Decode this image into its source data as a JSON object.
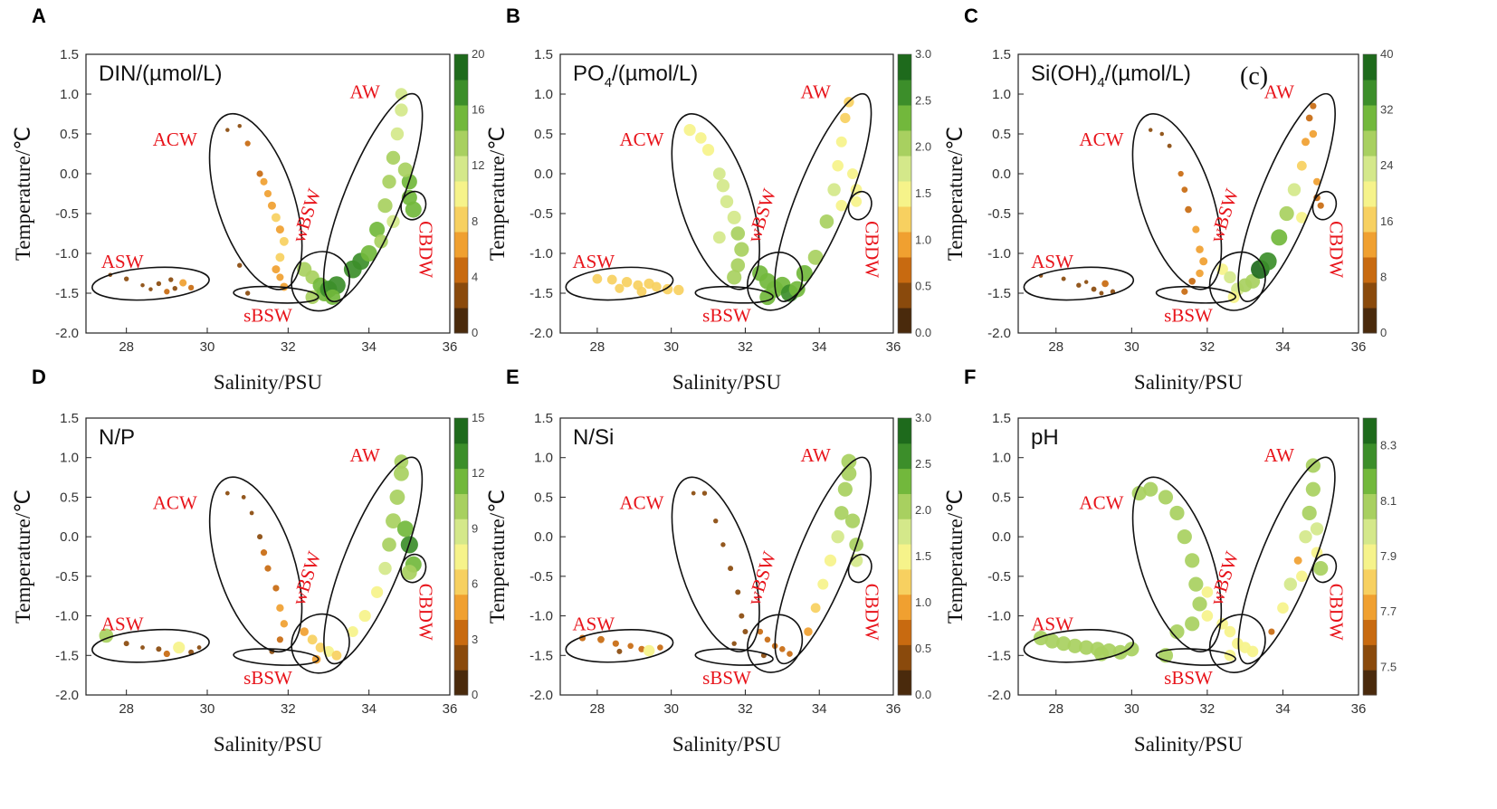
{
  "figure": {
    "background": "#ffffff"
  },
  "axes": {
    "xlabel": "Salinity/PSU",
    "ylabel": "Temperature/℃",
    "xlim": [
      27,
      36
    ],
    "ylim": [
      -2.0,
      1.5
    ],
    "xticks": [
      "28",
      "30",
      "32",
      "34",
      "36"
    ],
    "yticks": [
      "1.5",
      "1.0",
      "0.5",
      "0.0",
      "-0.5",
      "-1.0",
      "-1.5",
      "-2.0"
    ],
    "water_masses": [
      "ASW",
      "ACW",
      "sBSW",
      "wBSW",
      "AW",
      "CBDW"
    ]
  },
  "colorscale": [
    "#4a2a0c",
    "#8a4a0c",
    "#c86a10",
    "#f0a030",
    "#f7d060",
    "#f6f38a",
    "#d4e88a",
    "#a8d060",
    "#72b83c",
    "#3c8e2a",
    "#1e6a1c"
  ],
  "chart_data": [
    {
      "type": "scatter",
      "letter": "A",
      "title": "DIN/(µmol/L)",
      "title_sub": "",
      "colorbar": {
        "min": 0,
        "max": 20,
        "ticks": [
          "20",
          "16",
          "12",
          "8",
          "4",
          "0"
        ]
      },
      "points": [
        [
          27.6,
          -1.27,
          1
        ],
        [
          28.0,
          -1.32,
          2
        ],
        [
          28.4,
          -1.4,
          1
        ],
        [
          28.8,
          -1.38,
          2
        ],
        [
          29.0,
          -1.48,
          3
        ],
        [
          29.2,
          -1.44,
          2
        ],
        [
          29.4,
          -1.37,
          5
        ],
        [
          29.6,
          -1.43,
          3
        ],
        [
          29.1,
          -1.33,
          2
        ],
        [
          28.6,
          -1.45,
          1
        ],
        [
          30.5,
          0.55,
          1
        ],
        [
          30.8,
          0.6,
          1
        ],
        [
          31.0,
          0.38,
          3
        ],
        [
          31.3,
          0.0,
          4
        ],
        [
          31.4,
          -0.1,
          5
        ],
        [
          31.5,
          -0.25,
          5
        ],
        [
          31.6,
          -0.4,
          6
        ],
        [
          31.7,
          -0.55,
          7
        ],
        [
          31.8,
          -0.7,
          6
        ],
        [
          31.9,
          -0.85,
          7
        ],
        [
          31.8,
          -1.05,
          7
        ],
        [
          31.7,
          -1.2,
          6
        ],
        [
          31.8,
          -1.3,
          5
        ],
        [
          31.9,
          -1.42,
          6
        ],
        [
          30.8,
          -1.15,
          2
        ],
        [
          31.0,
          -1.5,
          2
        ],
        [
          32.4,
          -1.2,
          14
        ],
        [
          32.6,
          -1.3,
          13
        ],
        [
          32.8,
          -1.4,
          15
        ],
        [
          32.6,
          -1.55,
          13
        ],
        [
          32.9,
          -1.5,
          16
        ],
        [
          33.0,
          -1.45,
          17
        ],
        [
          33.2,
          -1.4,
          18
        ],
        [
          33.1,
          -1.55,
          15
        ],
        [
          33.6,
          -1.2,
          18
        ],
        [
          33.8,
          -1.1,
          17
        ],
        [
          34.0,
          -1.0,
          16
        ],
        [
          34.2,
          -0.7,
          15
        ],
        [
          34.4,
          -0.4,
          14
        ],
        [
          34.5,
          -0.1,
          13
        ],
        [
          34.6,
          0.2,
          13
        ],
        [
          34.7,
          0.5,
          12
        ],
        [
          34.8,
          0.8,
          12
        ],
        [
          34.8,
          1.0,
          11
        ],
        [
          34.6,
          -0.6,
          12
        ],
        [
          34.3,
          -0.85,
          13
        ],
        [
          35.0,
          -0.3,
          15
        ],
        [
          35.1,
          -0.45,
          16
        ],
        [
          35.0,
          -0.1,
          15
        ],
        [
          34.9,
          0.05,
          14
        ]
      ]
    },
    {
      "type": "scatter",
      "letter": "B",
      "title": "PO",
      "title_sub": "4",
      "title_tail": "/(µmol/L)",
      "colorbar": {
        "min": 0.0,
        "max": 3.0,
        "ticks": [
          "3.0",
          "2.5",
          "2.0",
          "1.5",
          "1.0",
          "0.5",
          "0.0"
        ]
      },
      "points": [
        [
          28.0,
          -1.32,
          1.2
        ],
        [
          28.4,
          -1.33,
          1.2
        ],
        [
          28.8,
          -1.36,
          1.3
        ],
        [
          29.1,
          -1.4,
          1.2
        ],
        [
          29.4,
          -1.38,
          1.3
        ],
        [
          29.6,
          -1.42,
          1.2
        ],
        [
          29.9,
          -1.45,
          1.3
        ],
        [
          28.6,
          -1.44,
          1.1
        ],
        [
          29.2,
          -1.48,
          1.2
        ],
        [
          30.2,
          -1.46,
          1.3
        ],
        [
          30.5,
          0.55,
          1.6
        ],
        [
          30.8,
          0.45,
          1.5
        ],
        [
          31.0,
          0.3,
          1.6
        ],
        [
          31.3,
          0.0,
          1.7
        ],
        [
          31.4,
          -0.15,
          1.8
        ],
        [
          31.5,
          -0.35,
          1.8
        ],
        [
          31.7,
          -0.55,
          1.9
        ],
        [
          31.8,
          -0.75,
          2.0
        ],
        [
          31.9,
          -0.95,
          2.1
        ],
        [
          31.8,
          -1.15,
          2.0
        ],
        [
          31.7,
          -1.3,
          2.1
        ],
        [
          31.3,
          -0.8,
          1.7
        ],
        [
          32.4,
          -1.25,
          2.3
        ],
        [
          32.6,
          -1.35,
          2.4
        ],
        [
          32.8,
          -1.45,
          2.5
        ],
        [
          33.0,
          -1.4,
          2.5
        ],
        [
          33.2,
          -1.5,
          2.6
        ],
        [
          32.6,
          -1.55,
          2.3
        ],
        [
          33.4,
          -1.45,
          2.4
        ],
        [
          33.6,
          -1.25,
          2.4
        ],
        [
          33.9,
          -1.05,
          2.2
        ],
        [
          34.2,
          -0.6,
          2.0
        ],
        [
          34.4,
          -0.2,
          1.8
        ],
        [
          34.5,
          0.1,
          1.5
        ],
        [
          34.6,
          0.4,
          1.4
        ],
        [
          34.7,
          0.7,
          1.3
        ],
        [
          34.8,
          0.9,
          1.3
        ],
        [
          34.6,
          -0.4,
          1.5
        ],
        [
          35.0,
          -0.35,
          1.4
        ],
        [
          35.0,
          -0.2,
          1.5
        ],
        [
          34.9,
          0.0,
          1.4
        ]
      ]
    },
    {
      "type": "scatter",
      "letter": "C",
      "title": "Si(OH)",
      "title_sub": "4",
      "title_tail": "/(µmol/L)",
      "extra_label": "(c)",
      "colorbar": {
        "min": 0,
        "max": 40,
        "ticks": [
          "40",
          "32",
          "24",
          "16",
          "8",
          "0"
        ]
      },
      "points": [
        [
          27.6,
          -1.28,
          2
        ],
        [
          28.2,
          -1.32,
          3
        ],
        [
          28.6,
          -1.4,
          4
        ],
        [
          29.0,
          -1.45,
          5
        ],
        [
          29.3,
          -1.38,
          9
        ],
        [
          29.5,
          -1.48,
          4
        ],
        [
          29.2,
          -1.5,
          3
        ],
        [
          28.8,
          -1.36,
          2
        ],
        [
          30.5,
          0.55,
          2
        ],
        [
          30.8,
          0.5,
          2
        ],
        [
          31.0,
          0.35,
          3
        ],
        [
          31.3,
          0.0,
          6
        ],
        [
          31.4,
          -0.2,
          7
        ],
        [
          31.5,
          -0.45,
          9
        ],
        [
          31.7,
          -0.7,
          10
        ],
        [
          31.8,
          -0.95,
          11
        ],
        [
          31.9,
          -1.1,
          12
        ],
        [
          31.8,
          -1.25,
          11
        ],
        [
          31.6,
          -1.35,
          9
        ],
        [
          31.4,
          -1.48,
          8
        ],
        [
          32.4,
          -1.2,
          20
        ],
        [
          32.6,
          -1.3,
          22
        ],
        [
          32.8,
          -1.45,
          24
        ],
        [
          33.0,
          -1.4,
          26
        ],
        [
          33.2,
          -1.35,
          28
        ],
        [
          33.4,
          -1.2,
          38
        ],
        [
          32.7,
          -1.55,
          21
        ],
        [
          33.6,
          -1.1,
          36
        ],
        [
          33.9,
          -0.8,
          32
        ],
        [
          34.1,
          -0.5,
          28
        ],
        [
          34.3,
          -0.2,
          24
        ],
        [
          34.5,
          0.1,
          16
        ],
        [
          34.6,
          0.4,
          12
        ],
        [
          34.7,
          0.7,
          9
        ],
        [
          34.8,
          0.85,
          8
        ],
        [
          34.5,
          -0.55,
          20
        ],
        [
          34.9,
          -0.3,
          9
        ],
        [
          35.0,
          -0.4,
          8
        ],
        [
          34.9,
          -0.1,
          10
        ],
        [
          34.8,
          0.5,
          11
        ]
      ]
    },
    {
      "type": "scatter",
      "letter": "D",
      "title": "N/P",
      "title_sub": "",
      "colorbar": {
        "min": 0,
        "max": 15,
        "ticks": [
          "15",
          "12",
          "9",
          "6",
          "3",
          "0"
        ]
      },
      "points": [
        [
          27.5,
          -1.25,
          10
        ],
        [
          28.0,
          -1.35,
          2
        ],
        [
          28.4,
          -1.4,
          1
        ],
        [
          28.8,
          -1.42,
          2
        ],
        [
          29.0,
          -1.48,
          3
        ],
        [
          29.3,
          -1.4,
          8
        ],
        [
          29.6,
          -1.46,
          2
        ],
        [
          29.8,
          -1.4,
          1
        ],
        [
          30.5,
          0.55,
          1
        ],
        [
          30.9,
          0.5,
          1
        ],
        [
          31.1,
          0.3,
          1
        ],
        [
          31.3,
          0.0,
          2
        ],
        [
          31.4,
          -0.2,
          3
        ],
        [
          31.5,
          -0.4,
          3
        ],
        [
          31.7,
          -0.65,
          3
        ],
        [
          31.8,
          -0.9,
          4
        ],
        [
          31.9,
          -1.1,
          4
        ],
        [
          31.8,
          -1.3,
          3
        ],
        [
          31.6,
          -1.45,
          2
        ],
        [
          32.4,
          -1.2,
          5
        ],
        [
          32.6,
          -1.3,
          6
        ],
        [
          32.8,
          -1.4,
          6
        ],
        [
          33.0,
          -1.45,
          7
        ],
        [
          33.2,
          -1.5,
          6
        ],
        [
          32.7,
          -1.55,
          5
        ],
        [
          33.6,
          -1.2,
          7
        ],
        [
          33.9,
          -1.0,
          8
        ],
        [
          34.2,
          -0.7,
          8
        ],
        [
          34.4,
          -0.4,
          9
        ],
        [
          34.5,
          -0.1,
          10
        ],
        [
          34.6,
          0.2,
          11
        ],
        [
          34.7,
          0.5,
          11
        ],
        [
          34.8,
          0.8,
          11
        ],
        [
          34.8,
          0.95,
          10
        ],
        [
          35.0,
          -0.1,
          13
        ],
        [
          35.1,
          -0.35,
          12
        ],
        [
          35.0,
          -0.45,
          11
        ],
        [
          34.9,
          0.1,
          12
        ]
      ]
    },
    {
      "type": "scatter",
      "letter": "E",
      "title": "N/Si",
      "title_sub": "",
      "colorbar": {
        "min": 0.0,
        "max": 3.0,
        "ticks": [
          "3.0",
          "2.5",
          "2.0",
          "1.5",
          "1.0",
          "0.5",
          "0.0"
        ]
      },
      "points": [
        [
          27.6,
          -1.28,
          0.6
        ],
        [
          28.1,
          -1.3,
          0.7
        ],
        [
          28.5,
          -1.35,
          0.6
        ],
        [
          28.9,
          -1.38,
          0.5
        ],
        [
          29.2,
          -1.42,
          0.6
        ],
        [
          29.4,
          -1.44,
          1.5
        ],
        [
          29.7,
          -1.4,
          0.5
        ],
        [
          28.6,
          -1.45,
          0.4
        ],
        [
          30.6,
          0.55,
          0.2
        ],
        [
          30.9,
          0.55,
          0.3
        ],
        [
          31.2,
          0.2,
          0.3
        ],
        [
          31.4,
          -0.1,
          0.3
        ],
        [
          31.6,
          -0.4,
          0.4
        ],
        [
          31.8,
          -0.7,
          0.4
        ],
        [
          31.9,
          -1.0,
          0.4
        ],
        [
          32.0,
          -1.2,
          0.4
        ],
        [
          31.7,
          -1.35,
          0.3
        ],
        [
          32.4,
          -1.2,
          0.5
        ],
        [
          32.6,
          -1.3,
          0.5
        ],
        [
          32.8,
          -1.38,
          0.5
        ],
        [
          33.0,
          -1.42,
          0.5
        ],
        [
          33.2,
          -1.48,
          0.5
        ],
        [
          32.5,
          -1.5,
          0.4
        ],
        [
          33.7,
          -1.2,
          1.0
        ],
        [
          33.9,
          -0.9,
          1.2
        ],
        [
          34.1,
          -0.6,
          1.4
        ],
        [
          34.3,
          -0.3,
          1.6
        ],
        [
          34.5,
          0.0,
          1.8
        ],
        [
          34.6,
          0.3,
          2.0
        ],
        [
          34.7,
          0.6,
          2.1
        ],
        [
          34.8,
          0.8,
          2.2
        ],
        [
          34.8,
          0.95,
          2.2
        ],
        [
          35.0,
          -0.3,
          1.8
        ],
        [
          35.0,
          -0.1,
          2.0
        ],
        [
          34.9,
          0.2,
          2.1
        ]
      ]
    },
    {
      "type": "scatter",
      "letter": "F",
      "title": "pH",
      "title_sub": "",
      "colorbar": {
        "min": 7.4,
        "max": 8.4,
        "ticks": [
          "8.3",
          "8.1",
          "7.9",
          "7.7",
          "7.5"
        ]
      },
      "points": [
        [
          27.6,
          -1.28,
          8.1
        ],
        [
          27.9,
          -1.32,
          8.1
        ],
        [
          28.2,
          -1.35,
          8.1
        ],
        [
          28.5,
          -1.38,
          8.1
        ],
        [
          28.8,
          -1.4,
          8.1
        ],
        [
          29.1,
          -1.42,
          8.1
        ],
        [
          29.4,
          -1.44,
          8.1
        ],
        [
          29.7,
          -1.46,
          8.1
        ],
        [
          30.0,
          -1.42,
          8.1
        ],
        [
          29.2,
          -1.48,
          8.1
        ],
        [
          30.2,
          0.55,
          8.1
        ],
        [
          30.5,
          0.6,
          8.1
        ],
        [
          30.9,
          0.5,
          8.1
        ],
        [
          31.2,
          0.3,
          8.1
        ],
        [
          31.4,
          0.0,
          8.1
        ],
        [
          31.6,
          -0.3,
          8.1
        ],
        [
          31.7,
          -0.6,
          8.1
        ],
        [
          31.8,
          -0.85,
          8.1
        ],
        [
          31.6,
          -1.1,
          8.1
        ],
        [
          31.2,
          -1.2,
          8.1
        ],
        [
          30.9,
          -1.5,
          8.1
        ],
        [
          32.0,
          -0.7,
          7.9
        ],
        [
          32.0,
          -1.0,
          7.9
        ],
        [
          32.4,
          -1.1,
          7.9
        ],
        [
          32.6,
          -1.2,
          7.9
        ],
        [
          32.8,
          -1.35,
          7.9
        ],
        [
          33.0,
          -1.4,
          7.9
        ],
        [
          33.2,
          -1.45,
          7.9
        ],
        [
          32.6,
          -1.5,
          7.9
        ],
        [
          33.7,
          -1.2,
          7.6
        ],
        [
          34.0,
          -0.9,
          7.9
        ],
        [
          34.2,
          -0.6,
          8.0
        ],
        [
          34.4,
          -0.3,
          7.7
        ],
        [
          34.6,
          0.0,
          8.0
        ],
        [
          34.7,
          0.3,
          8.1
        ],
        [
          34.8,
          0.6,
          8.1
        ],
        [
          34.8,
          0.9,
          8.1
        ],
        [
          34.5,
          -0.5,
          7.9
        ],
        [
          35.0,
          -0.4,
          8.1
        ],
        [
          34.9,
          -0.2,
          7.9
        ],
        [
          34.9,
          0.1,
          8.0
        ]
      ]
    }
  ]
}
